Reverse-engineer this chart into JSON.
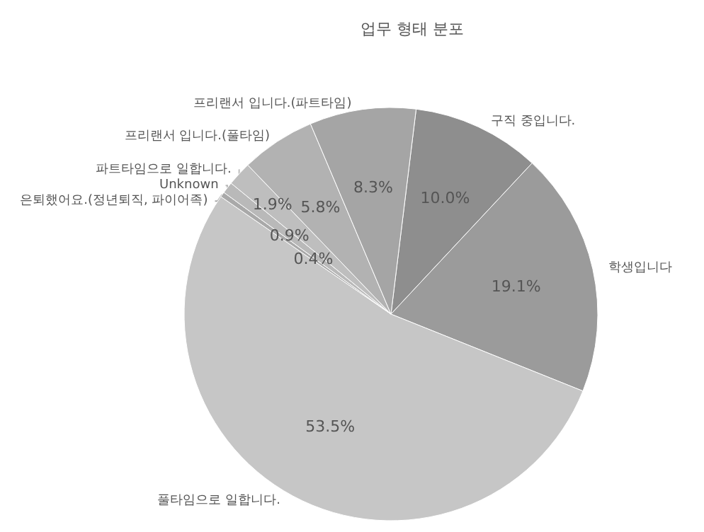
{
  "chart_data": {
    "type": "pie",
    "title": "업무 형태 분포",
    "categories": [
      "구직 중입니다.",
      "학생입니다",
      "풀타임으로 일합니다.",
      "은퇴했어요.(정년퇴직, 파이어족)",
      "Unknown",
      "파트타임으로 일합니다.",
      "프리랜서 입니다.(풀타임)",
      "프리랜서 입니다.(파트타임)"
    ],
    "values": [
      10.0,
      19.1,
      53.5,
      0.4,
      0.9,
      1.9,
      5.8,
      8.3
    ],
    "value_labels": [
      "10.0%",
      "19.1%",
      "53.5%",
      "0.4%",
      "0.9%",
      "1.9%",
      "5.8%",
      "8.3%"
    ],
    "colors": [
      "#8e8e8e",
      "#9b9b9b",
      "#c6c6c6",
      "#a9a9a9",
      "#b9b9b9",
      "#bebebe",
      "#b2b2b2",
      "#a5a5a5"
    ],
    "legend": false
  }
}
